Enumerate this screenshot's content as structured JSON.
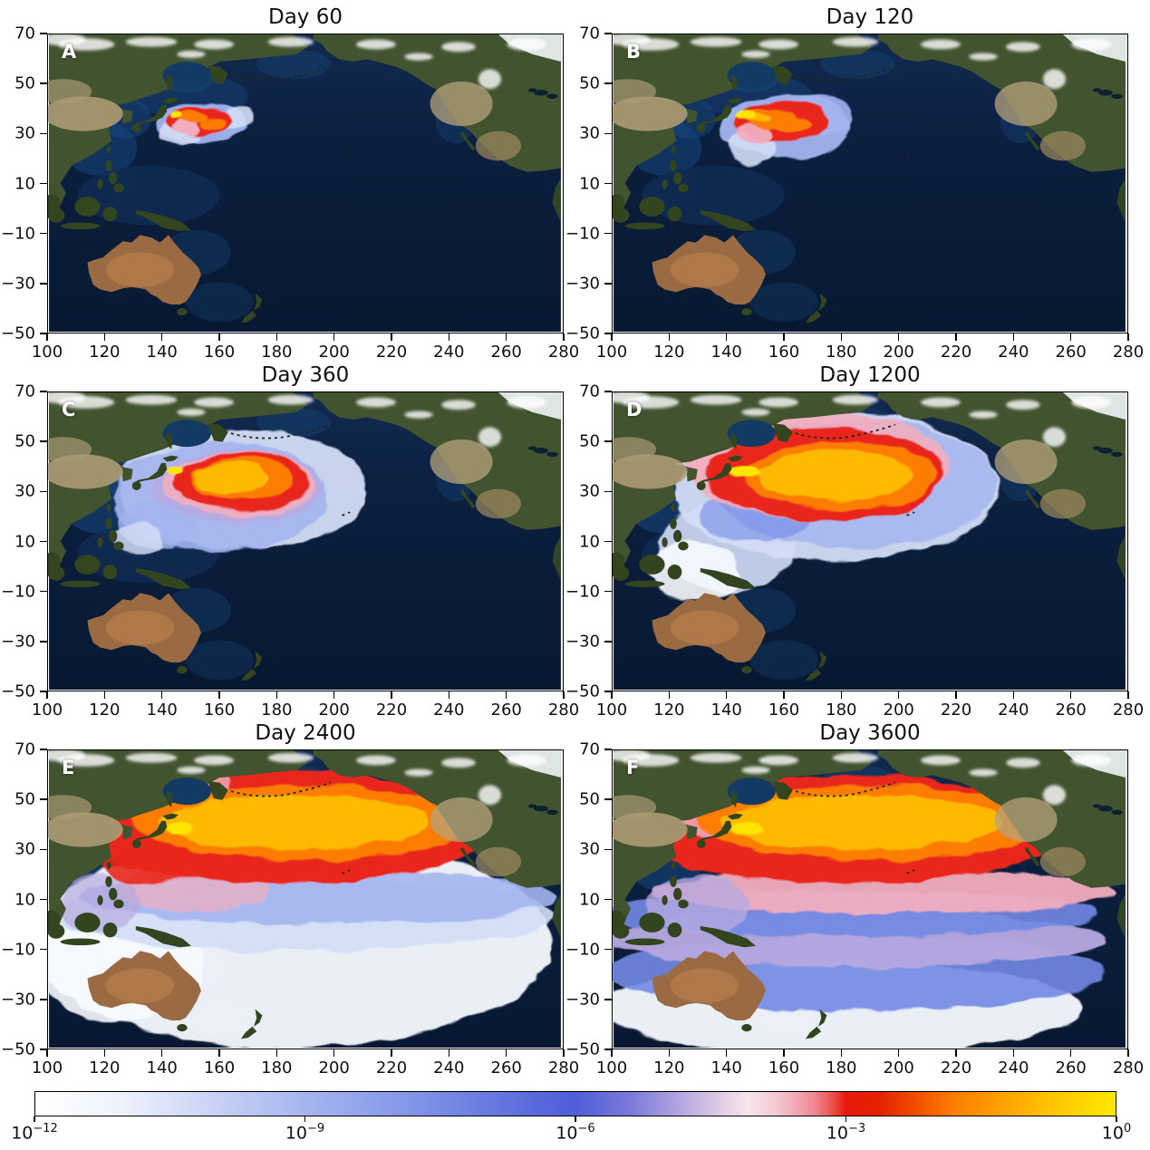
{
  "figure": {
    "description": "Simulated surface tracer concentration dispersal across the Pacific Ocean at six times after release near Japan",
    "panel_letters": [
      "A",
      "B",
      "C",
      "D",
      "E",
      "F"
    ]
  },
  "chart_data": {
    "type": "heatmap",
    "layout": {
      "rows": 3,
      "cols": 2,
      "legend_position": "bottom-colorbar",
      "grid": false
    },
    "projection": {
      "lon_range": [
        100,
        280
      ],
      "lat_range": [
        -50,
        70
      ]
    },
    "x_ticks": [
      "100",
      "120",
      "140",
      "160",
      "180",
      "200",
      "220",
      "240",
      "260",
      "280"
    ],
    "y_ticks": [
      "70",
      "50",
      "30",
      "10",
      "−10",
      "−30",
      "−50"
    ],
    "x_tick_values": [
      100,
      120,
      140,
      160,
      180,
      200,
      220,
      240,
      260,
      280
    ],
    "y_tick_values": [
      70,
      50,
      30,
      10,
      -10,
      -30,
      -50
    ],
    "colorbar": {
      "scale": "log",
      "range_exponents": [
        -12,
        0
      ],
      "ticks": [
        {
          "mantissa": "10",
          "exp": "−12",
          "frac": 0
        },
        {
          "mantissa": "10",
          "exp": "−9",
          "frac": 0.25
        },
        {
          "mantissa": "10",
          "exp": "−6",
          "frac": 0.5
        },
        {
          "mantissa": "10",
          "exp": "−3",
          "frac": 0.75
        },
        {
          "mantissa": "10",
          "exp": "0",
          "frac": 1
        }
      ],
      "gradient_stops": [
        [
          0,
          "#ffffff"
        ],
        [
          8,
          "#eef2fc"
        ],
        [
          18,
          "#c3cdf3"
        ],
        [
          25,
          "#a6b5ee"
        ],
        [
          35,
          "#8195e7"
        ],
        [
          45,
          "#5e6edd"
        ],
        [
          50,
          "#4f5ed9"
        ],
        [
          55,
          "#7a79d9"
        ],
        [
          60,
          "#b7a9e0"
        ],
        [
          64,
          "#e6d2e6"
        ],
        [
          66,
          "#f6e6ec"
        ],
        [
          69,
          "#f3c3cf"
        ],
        [
          72,
          "#ee8b96"
        ],
        [
          74,
          "#ea4a42"
        ],
        [
          75,
          "#e81a0e"
        ],
        [
          78,
          "#e42000"
        ],
        [
          82,
          "#f45500"
        ],
        [
          85,
          "#fc7d00"
        ],
        [
          89,
          "#ff9d00"
        ],
        [
          94,
          "#ffc400"
        ],
        [
          100,
          "#ffe900"
        ]
      ]
    },
    "panels": [
      {
        "label": "A",
        "title": "Day 60",
        "plume": [
          {
            "lon": 153,
            "lat": 34.5,
            "rlon": 16,
            "rlat": 8.5,
            "c": "#a4b5ef",
            "op": 0.95
          },
          {
            "lon": 146,
            "lat": 30.5,
            "rlon": 7,
            "rlat": 5,
            "c": "#d3ddf6",
            "op": 0.9
          },
          {
            "lon": 166,
            "lat": 36.5,
            "rlon": 6,
            "rlat": 3.5,
            "c": "#d3ddf6",
            "op": 0.9
          },
          {
            "lon": 152.5,
            "lat": 35.5,
            "rlon": 11.5,
            "rlat": 6,
            "c": "#e9261b",
            "op": 1
          },
          {
            "lon": 148.5,
            "lat": 32.5,
            "rlon": 4.5,
            "rlat": 3,
            "c": "#f2aebf",
            "op": 1
          },
          {
            "lon": 150,
            "lat": 37,
            "rlon": 5.5,
            "rlat": 2.5,
            "c": "#fc7d00",
            "op": 1
          },
          {
            "lon": 158,
            "lat": 34.5,
            "rlon": 4.5,
            "rlat": 2.2,
            "c": "#fc7d00",
            "op": 1
          },
          {
            "lon": 144.5,
            "lat": 37.5,
            "rlon": 2.2,
            "rlat": 1.6,
            "c": "#ffe600",
            "op": 1
          }
        ]
      },
      {
        "label": "B",
        "title": "Day 120",
        "plume": [
          {
            "lon": 160,
            "lat": 33,
            "rlon": 23,
            "rlat": 13,
            "c": "#a4b5ef",
            "op": 0.95
          },
          {
            "lon": 149,
            "lat": 24,
            "rlon": 8,
            "rlat": 7,
            "c": "#d3ddf6",
            "op": 0.9
          },
          {
            "lon": 172,
            "lat": 37,
            "rlon": 12,
            "rlat": 8,
            "c": "#a4b5ef",
            "op": 0.9
          },
          {
            "lon": 159,
            "lat": 35,
            "rlon": 16.5,
            "rlat": 8.5,
            "c": "#e9261b",
            "op": 1
          },
          {
            "lon": 150,
            "lat": 30,
            "rlon": 6,
            "rlat": 4,
            "c": "#f2aebf",
            "op": 0.95
          },
          {
            "lon": 155,
            "lat": 36.5,
            "rlon": 9,
            "rlat": 4,
            "c": "#fc7d00",
            "op": 1
          },
          {
            "lon": 163,
            "lat": 34,
            "rlon": 6,
            "rlat": 3,
            "c": "#fc7d00",
            "op": 1
          },
          {
            "lon": 149,
            "lat": 36.8,
            "rlon": 6,
            "rlat": 1.8,
            "c": "#ffb900",
            "op": 1
          },
          {
            "lon": 146.5,
            "lat": 37.5,
            "rlon": 4,
            "rlat": 2,
            "c": "#ffe600",
            "op": 1
          }
        ]
      },
      {
        "label": "C",
        "title": "Day 360",
        "plume": [
          {
            "lon": 168,
            "lat": 31,
            "rlon": 44,
            "rlat": 24,
            "c": "#d3ddf6",
            "op": 0.95
          },
          {
            "lon": 160,
            "lat": 28,
            "rlon": 38,
            "rlat": 22,
            "c": "#a4b5ef",
            "op": 0.9
          },
          {
            "lon": 138,
            "lat": 17,
            "rlon": 14,
            "rlat": 10,
            "c": "#a4b5ef",
            "op": 0.85
          },
          {
            "lon": 131,
            "lat": 11,
            "rlon": 9,
            "rlat": 7,
            "c": "#d3ddf6",
            "op": 0.85
          },
          {
            "lon": 166,
            "lat": 32,
            "rlon": 30,
            "rlat": 15,
            "c": "#b7a9e0",
            "op": 0.8
          },
          {
            "lon": 167,
            "lat": 33,
            "rlon": 27,
            "rlat": 13,
            "c": "#f2aebf",
            "op": 0.9
          },
          {
            "lon": 168,
            "lat": 34,
            "rlon": 24,
            "rlat": 11.5,
            "c": "#e9261b",
            "op": 1
          },
          {
            "lon": 168,
            "lat": 35,
            "rlon": 18,
            "rlat": 8.5,
            "c": "#fc7d00",
            "op": 1
          },
          {
            "lon": 164,
            "lat": 35.5,
            "rlon": 13,
            "rlat": 6.5,
            "c": "#ffb900",
            "op": 1
          },
          {
            "lon": 144,
            "lat": 38.5,
            "rlon": 3,
            "rlat": 1.8,
            "c": "#ffe600",
            "op": 1
          }
        ]
      },
      {
        "label": "D",
        "title": "Day 1200",
        "plume": [
          {
            "lon": 178,
            "lat": 32,
            "rlon": 58,
            "rlat": 30,
            "c": "#d3ddf6",
            "op": 0.95
          },
          {
            "lon": 140,
            "lat": 8,
            "rlon": 24,
            "rlat": 18,
            "c": "#d3ddf6",
            "op": 0.9
          },
          {
            "lon": 128,
            "lat": -2,
            "rlon": 16,
            "rlat": 12,
            "c": "#f7faff",
            "op": 0.9
          },
          {
            "lon": 185,
            "lat": 33,
            "rlon": 50,
            "rlat": 26,
            "c": "#a4b5ef",
            "op": 0.85
          },
          {
            "lon": 150,
            "lat": 20,
            "rlon": 20,
            "rlat": 10,
            "c": "#7288e4",
            "op": 0.6
          },
          {
            "lon": 133,
            "lat": 41,
            "rlon": 6,
            "rlat": 5,
            "c": "#f2aebf",
            "op": 0.8
          },
          {
            "lon": 172,
            "lat": 40,
            "rlon": 46,
            "rlat": 22,
            "c": "#f2aebf",
            "op": 0.9
          },
          {
            "lon": 174,
            "lat": 37,
            "rlon": 42,
            "rlat": 19,
            "c": "#e9261b",
            "op": 1
          },
          {
            "lon": 180,
            "lat": 36.5,
            "rlon": 34,
            "rlat": 13.5,
            "c": "#fc7d00",
            "op": 1
          },
          {
            "lon": 178,
            "lat": 36.5,
            "rlon": 27,
            "rlat": 10,
            "c": "#ffb900",
            "op": 1
          },
          {
            "lon": 146,
            "lat": 38,
            "rlon": 6,
            "rlat": 2.5,
            "c": "#ffe600",
            "op": 1
          }
        ]
      },
      {
        "label": "E",
        "title": "Day 2400",
        "plume": [
          {
            "lon": 185,
            "lat": -8,
            "rlon": 92,
            "rlat": 42,
            "c": "#f7faff",
            "op": 0.95
          },
          {
            "lon": 125,
            "lat": -15,
            "rlon": 30,
            "rlat": 25,
            "c": "#f7faff",
            "op": 0.9
          },
          {
            "lon": 190,
            "lat": 3,
            "rlon": 88,
            "rlat": 14,
            "c": "#d3ddf6",
            "op": 0.9
          },
          {
            "lon": 195,
            "lat": 11,
            "rlon": 84,
            "rlat": 11,
            "c": "#a4b5ef",
            "op": 0.9
          },
          {
            "lon": 150,
            "lat": 14,
            "rlon": 28,
            "rlat": 9,
            "c": "#f2aebf",
            "op": 0.7
          },
          {
            "lon": 118,
            "lat": 8,
            "rlon": 14,
            "rlat": 12,
            "c": "#b7a9e0",
            "op": 0.7
          },
          {
            "lon": 182,
            "lat": 39,
            "rlon": 76,
            "rlat": 23,
            "c": "#e9261b",
            "op": 1
          },
          {
            "lon": 135,
            "lat": 28,
            "rlon": 18,
            "rlat": 12,
            "c": "#e9261b",
            "op": 0.9
          },
          {
            "lon": 148,
            "lat": 57,
            "rlon": 16,
            "rlat": 8,
            "c": "#f2aebf",
            "op": 0.8
          },
          {
            "lon": 190,
            "lat": 41,
            "rlon": 60,
            "rlat": 15,
            "c": "#fc7d00",
            "op": 1
          },
          {
            "lon": 186,
            "lat": 41,
            "rlon": 48,
            "rlat": 11,
            "c": "#ffb900",
            "op": 1
          },
          {
            "lon": 146,
            "lat": 38.5,
            "rlon": 5,
            "rlat": 3,
            "c": "#ffe600",
            "op": 1
          }
        ]
      },
      {
        "label": "F",
        "title": "Day 3600",
        "plume": [
          {
            "lon": 180,
            "lat": -34,
            "rlon": 85,
            "rlat": 18,
            "c": "#f7faff",
            "op": 0.95
          },
          {
            "lon": 185,
            "lat": -20,
            "rlon": 88,
            "rlat": 15,
            "c": "#7288e4",
            "op": 0.9
          },
          {
            "lon": 185,
            "lat": -6,
            "rlon": 88,
            "rlat": 12,
            "c": "#b7a9e0",
            "op": 0.95
          },
          {
            "lon": 182,
            "lat": 4,
            "rlon": 88,
            "rlat": 9,
            "c": "#7288e4",
            "op": 0.9
          },
          {
            "lon": 195,
            "lat": 13,
            "rlon": 82,
            "rlat": 9,
            "c": "#f2aebf",
            "op": 0.95
          },
          {
            "lon": 130,
            "lat": 8,
            "rlon": 18,
            "rlat": 12,
            "c": "#b7a9e0",
            "op": 0.8
          },
          {
            "lon": 182,
            "lat": 38,
            "rlon": 78,
            "rlat": 22,
            "c": "#e9261b",
            "op": 1
          },
          {
            "lon": 148,
            "lat": 56,
            "rlon": 17,
            "rlat": 9,
            "c": "#e9261b",
            "op": 0.9
          },
          {
            "lon": 133,
            "lat": 43,
            "rlon": 9,
            "rlat": 8,
            "c": "#f2aebf",
            "op": 0.85
          },
          {
            "lon": 192,
            "lat": 41,
            "rlon": 62,
            "rlat": 15,
            "c": "#fc7d00",
            "op": 1
          },
          {
            "lon": 187,
            "lat": 41,
            "rlon": 50,
            "rlat": 11,
            "c": "#ffb900",
            "op": 1
          },
          {
            "lon": 147,
            "lat": 38.5,
            "rlon": 6,
            "rlat": 3,
            "c": "#ffe600",
            "op": 1
          }
        ]
      }
    ]
  }
}
